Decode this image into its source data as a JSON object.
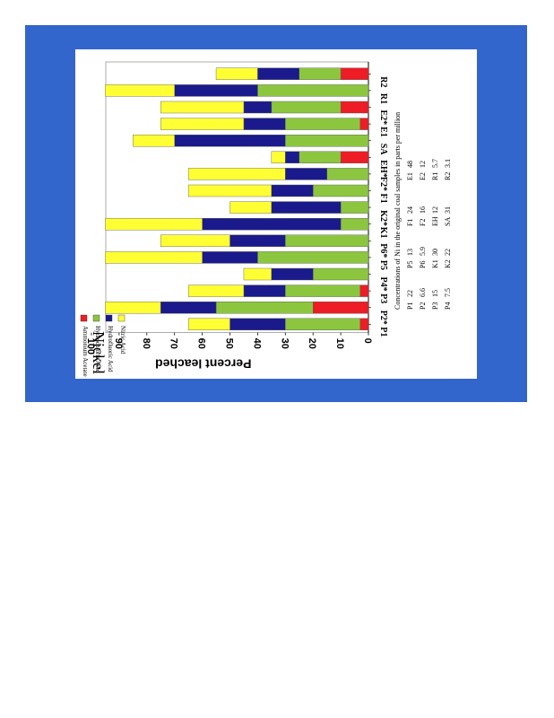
{
  "chart_data": {
    "type": "bar",
    "orientation": "stacked-horizontal",
    "title": "Nickel",
    "ylabel": "Percent leached",
    "xlim": [
      0,
      100
    ],
    "ticks": [
      "0",
      "10",
      "20",
      "30",
      "40",
      "50",
      "60",
      "70",
      "80",
      "90",
      "100"
    ],
    "categories": [
      "P1",
      "P2*",
      "P3",
      "P4*",
      "P5",
      "P6*",
      "K1",
      "K2*",
      "F1",
      "F2*",
      "EH*",
      "SA",
      "E1",
      "E2*",
      "R1",
      "R2"
    ],
    "series": [
      {
        "name": "Ammonium Acetate",
        "color": "#ee1c25",
        "values": [
          3,
          20,
          3,
          0,
          0,
          0,
          0,
          0,
          0,
          0,
          10,
          0,
          3,
          10,
          0,
          10
        ]
      },
      {
        "name": "Hydrochloric Acid",
        "color": "#8cc63e",
        "values": [
          27,
          35,
          27,
          20,
          40,
          30,
          10,
          10,
          20,
          15,
          15,
          30,
          27,
          25,
          40,
          15
        ]
      },
      {
        "name": "Hydrofluoric Acid",
        "color": "#1a1a8c",
        "values": [
          20,
          20,
          15,
          15,
          20,
          20,
          50,
          25,
          15,
          15,
          5,
          40,
          15,
          10,
          30,
          15
        ]
      },
      {
        "name": "Nitric Acid",
        "color": "#ffff33",
        "values": [
          15,
          20,
          20,
          10,
          35,
          25,
          35,
          15,
          30,
          35,
          5,
          15,
          30,
          30,
          25,
          15
        ]
      }
    ],
    "legend": {
      "position": "top-left"
    }
  },
  "notes": {
    "heading": "Concentrations of Ni in the original coal samples in parts per million",
    "rows": [
      [
        "P1",
        "22",
        "P5",
        "13",
        "F1",
        "24",
        "E1",
        "48"
      ],
      [
        "P2",
        "6.6",
        "P6",
        "5.9",
        "F2",
        "16",
        "E2",
        "12"
      ],
      [
        "P3",
        "15",
        "K1",
        "30",
        "EH",
        "12",
        "R1",
        "5.7"
      ],
      [
        "P4",
        "7.5",
        "K2",
        "22",
        "SA",
        "31",
        "R2",
        "3.1"
      ]
    ]
  }
}
